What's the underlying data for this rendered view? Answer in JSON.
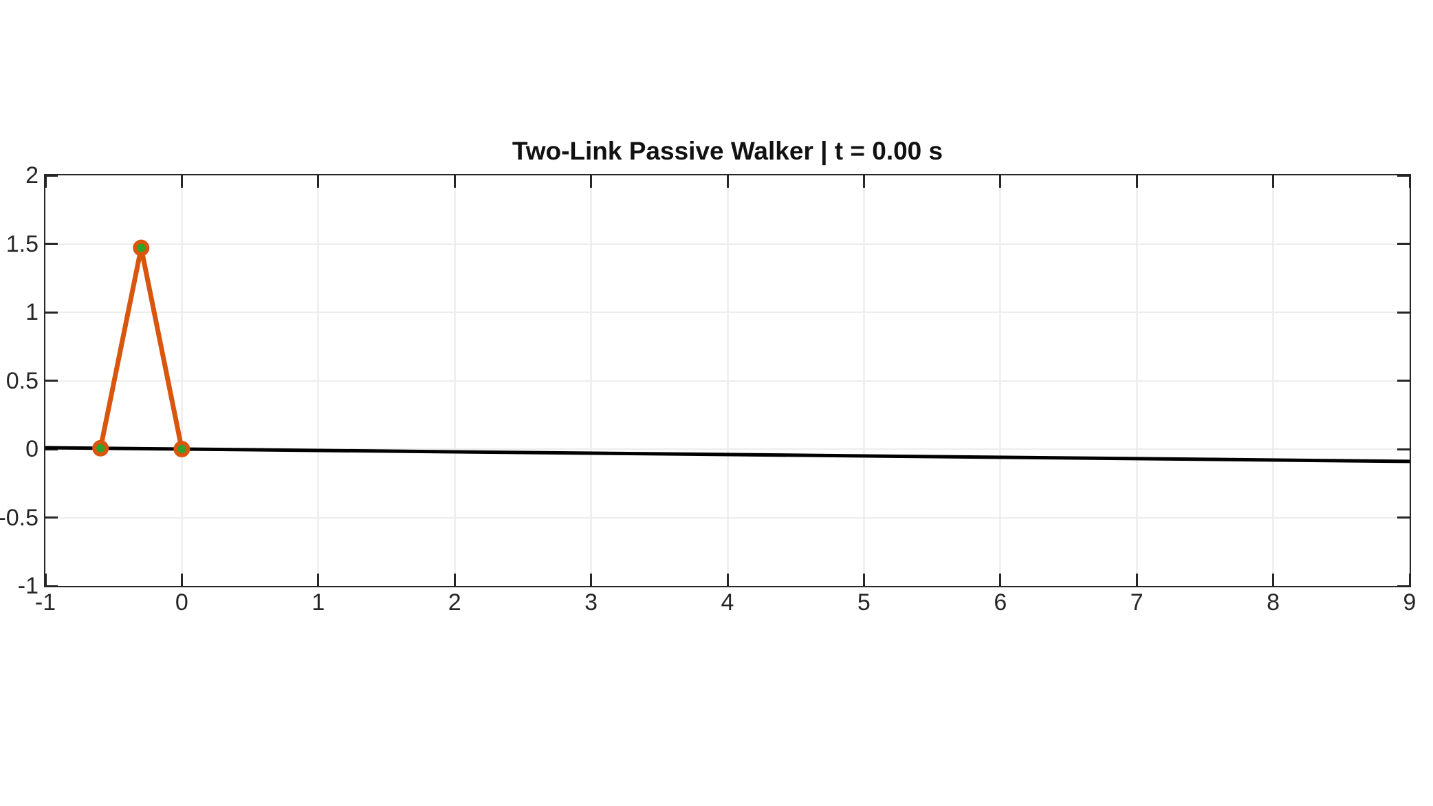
{
  "chart_data": {
    "type": "line",
    "title": "Two-Link Passive Walker | t = 0.00 s",
    "time_s": "0.00",
    "xlabel": "",
    "ylabel": "",
    "xlim": [
      -1,
      9
    ],
    "ylim": [
      -1,
      2
    ],
    "x_ticks": [
      "-1",
      "0",
      "1",
      "2",
      "3",
      "4",
      "5",
      "6",
      "7",
      "8",
      "9"
    ],
    "y_ticks": [
      "-1",
      "-0.5",
      "0",
      "0.5",
      "1",
      "1.5",
      "2"
    ],
    "grid": true,
    "legend": false,
    "series": [
      {
        "name": "ramp-ground",
        "color": "#000000",
        "line_width": 5,
        "line_cap": "butt",
        "points": [
          [
            -1,
            0.01
          ],
          [
            9,
            -0.09
          ]
        ]
      },
      {
        "name": "walker-legs",
        "color": "#D9560E",
        "line_width": 7,
        "line_cap": "round",
        "marker": {
          "shape": "circle",
          "fill": "#2CA42C",
          "edge_color": "#D9560E",
          "radius": 9,
          "edge_width": 6
        },
        "points": [
          [
            -0.596,
            0.006
          ],
          [
            -0.298,
            1.47
          ],
          [
            0,
            0
          ]
        ],
        "point_names": [
          "swing-foot-joint",
          "hip-joint",
          "stance-foot-joint"
        ]
      }
    ]
  },
  "colors": {
    "background": "#ffffff",
    "axis_frame": "#262626",
    "tick_label": "#262626",
    "title": "#111111",
    "grid_vertical": "#f0f0f0",
    "grid_horizontal": "#ededed"
  }
}
